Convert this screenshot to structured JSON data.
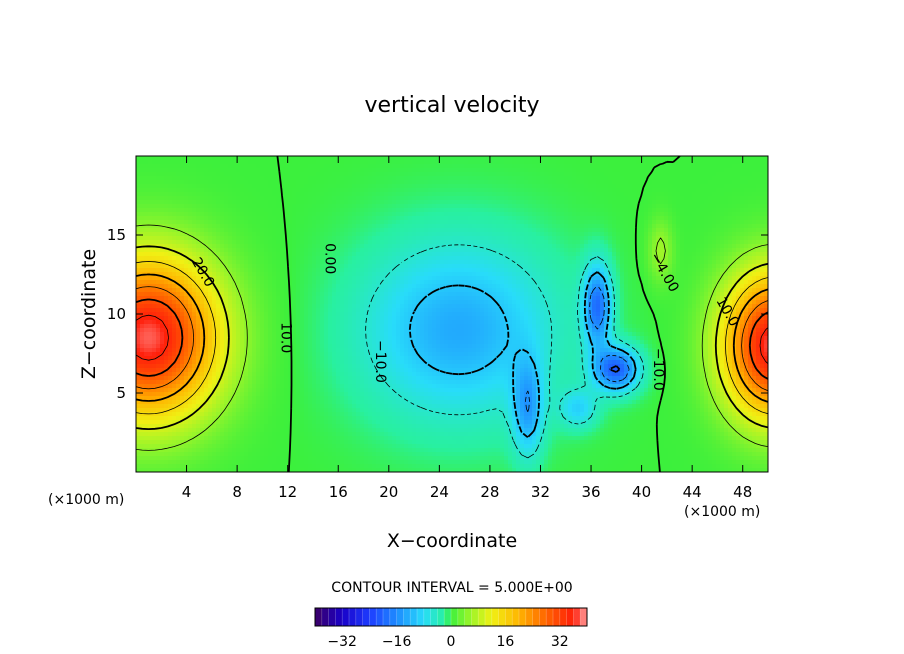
{
  "chart_data": {
    "type": "heatmap",
    "title": "vertical velocity",
    "xlabel": "X−coordinate",
    "ylabel": "Z−coordinate",
    "x_unit_left": "(×1000 m)",
    "x_unit_right": "(×1000 m)",
    "xlim": [
      0,
      50
    ],
    "ylim": [
      0,
      20
    ],
    "xticks": [
      "4",
      "8",
      "12",
      "16",
      "20",
      "24",
      "28",
      "32",
      "36",
      "40",
      "44",
      "48"
    ],
    "xtick_values": [
      4,
      8,
      12,
      16,
      20,
      24,
      28,
      32,
      36,
      40,
      44,
      48
    ],
    "yticks": [
      "5",
      "10",
      "15"
    ],
    "ytick_values": [
      5,
      10,
      15
    ],
    "contour_interval_text": "CONTOUR INTERVAL = 5.000E+00",
    "colorbar": {
      "ticks": [
        "−32",
        "−16",
        "0",
        "16",
        "32"
      ],
      "tick_values": [
        -32,
        -16,
        0,
        16,
        32
      ],
      "range": [
        -40,
        40
      ]
    },
    "contour_labels": [
      {
        "text": "20.0",
        "x": 5.0,
        "z": 12.5,
        "angle": 60
      },
      {
        "text": "10.0",
        "x": 11.5,
        "z": 8.5,
        "angle": 90
      },
      {
        "text": "0.00",
        "x": 15.0,
        "z": 13.5,
        "angle": 90
      },
      {
        "text": "−10.0",
        "x": 19.0,
        "z": 7.0,
        "angle": 90
      },
      {
        "text": "−4.00",
        "x": 41.5,
        "z": 12.5,
        "angle": 60
      },
      {
        "text": "−10.0",
        "x": 41.0,
        "z": 6.5,
        "angle": 90
      },
      {
        "text": "10.0",
        "x": 46.5,
        "z": 10.0,
        "angle": 60
      }
    ],
    "features": [
      {
        "kind": "updraft",
        "x": 1.0,
        "z": 8.5,
        "peak": 38
      },
      {
        "kind": "updraft",
        "x": 50.0,
        "z": 8.0,
        "peak": 36
      },
      {
        "kind": "downdraft",
        "x": 25.5,
        "z": 9.0,
        "peak": -12
      },
      {
        "kind": "downdraft",
        "x": 36.5,
        "z": 10.0,
        "peak": -26
      },
      {
        "kind": "downdraft",
        "x": 38.0,
        "z": 6.5,
        "peak": -30
      },
      {
        "kind": "downdraft",
        "x": 31.0,
        "z": 4.0,
        "peak": -18
      }
    ]
  }
}
